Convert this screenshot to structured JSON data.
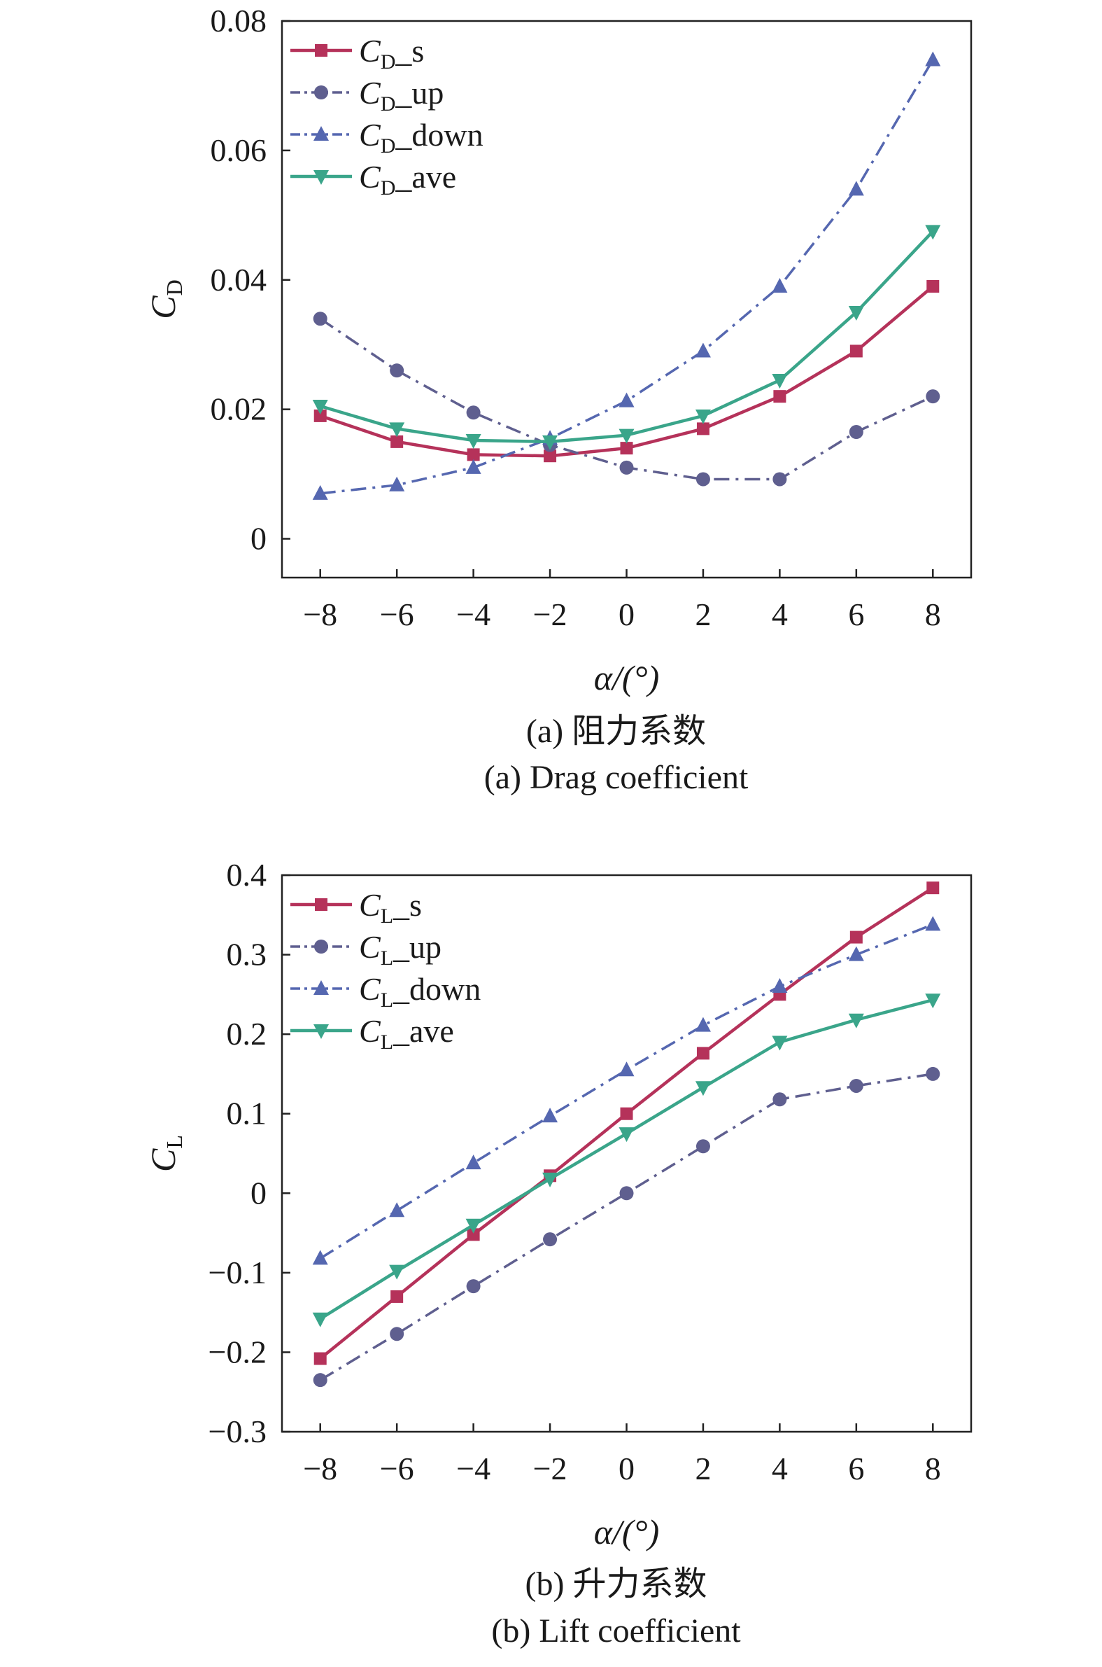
{
  "chart_data": [
    {
      "type": "line",
      "x": [
        -8,
        -6,
        -4,
        -2,
        0,
        2,
        4,
        6,
        8
      ],
      "xlim": [
        -9,
        9
      ],
      "ylim": [
        -0.006,
        0.08
      ],
      "xticks": [
        -8,
        -6,
        -4,
        -2,
        0,
        2,
        4,
        6,
        8
      ],
      "xtick_labels": [
        "−8",
        "−6",
        "−4",
        "−2",
        "0",
        "2",
        "4",
        "6",
        "8"
      ],
      "yticks": [
        0,
        0.02,
        0.04,
        0.06,
        0.08
      ],
      "ytick_labels": [
        "0",
        "0.02",
        "0.04",
        "0.06",
        "0.08"
      ],
      "xlabel": "α/(°)",
      "ylabel": {
        "main": "C",
        "sub": "D"
      },
      "caption_cn": "(a) 阻力系数",
      "caption_en": "(a) Drag coefficient",
      "grid": false,
      "legend_position": "top-left",
      "series": [
        {
          "label_main": "C",
          "label_sub": "D",
          "label_suffix": "_s",
          "color": "#b5325a",
          "dash": "solid",
          "marker": "square",
          "values": [
            0.019,
            0.015,
            0.013,
            0.0128,
            0.014,
            0.017,
            0.022,
            0.029,
            0.039
          ]
        },
        {
          "label_main": "C",
          "label_sub": "D",
          "label_suffix": "_up",
          "color": "#5f5f8f",
          "dash": "dashdot",
          "marker": "circle",
          "values": [
            0.034,
            0.026,
            0.0195,
            0.0145,
            0.011,
            0.0092,
            0.0092,
            0.0165,
            0.022
          ]
        },
        {
          "label_main": "C",
          "label_sub": "D",
          "label_suffix": "_down",
          "color": "#5567b0",
          "dash": "dashdot",
          "marker": "triangle-up",
          "values": [
            0.007,
            0.0083,
            0.011,
            0.0155,
            0.0213,
            0.029,
            0.039,
            0.054,
            0.074
          ]
        },
        {
          "label_main": "C",
          "label_sub": "D",
          "label_suffix": "_ave",
          "color": "#3aa58a",
          "dash": "solid",
          "marker": "triangle-down",
          "values": [
            0.0205,
            0.017,
            0.0152,
            0.015,
            0.016,
            0.019,
            0.0245,
            0.035,
            0.0475
          ]
        }
      ]
    },
    {
      "type": "line",
      "x": [
        -8,
        -6,
        -4,
        -2,
        0,
        2,
        4,
        6,
        8
      ],
      "xlim": [
        -9,
        9
      ],
      "ylim": [
        -0.3,
        0.4
      ],
      "xticks": [
        -8,
        -6,
        -4,
        -2,
        0,
        2,
        4,
        6,
        8
      ],
      "xtick_labels": [
        "−8",
        "−6",
        "−4",
        "−2",
        "0",
        "2",
        "4",
        "6",
        "8"
      ],
      "yticks": [
        -0.3,
        -0.2,
        -0.1,
        0,
        0.1,
        0.2,
        0.3,
        0.4
      ],
      "ytick_labels": [
        "−0.3",
        "−0.2",
        "−0.1",
        "0",
        "0.1",
        "0.2",
        "0.3",
        "0.4"
      ],
      "xlabel": "α/(°)",
      "ylabel": {
        "main": "C",
        "sub": "L"
      },
      "caption_cn": "(b) 升力系数",
      "caption_en": "(b) Lift coefficient",
      "grid": false,
      "legend_position": "top-left",
      "series": [
        {
          "label_main": "C",
          "label_sub": "L",
          "label_suffix": "_s",
          "color": "#b5325a",
          "dash": "solid",
          "marker": "square",
          "values": [
            -0.208,
            -0.13,
            -0.052,
            0.022,
            0.1,
            0.176,
            0.25,
            0.322,
            0.384
          ]
        },
        {
          "label_main": "C",
          "label_sub": "L",
          "label_suffix": "_up",
          "color": "#5f5f8f",
          "dash": "dashdot",
          "marker": "circle",
          "values": [
            -0.235,
            -0.177,
            -0.117,
            -0.058,
            0.0,
            0.059,
            0.118,
            0.135,
            0.15
          ]
        },
        {
          "label_main": "C",
          "label_sub": "L",
          "label_suffix": "_down",
          "color": "#5567b0",
          "dash": "dashdot",
          "marker": "triangle-up",
          "values": [
            -0.082,
            -0.022,
            0.038,
            0.097,
            0.155,
            0.211,
            0.26,
            0.3,
            0.338
          ]
        },
        {
          "label_main": "C",
          "label_sub": "L",
          "label_suffix": "_ave",
          "color": "#3aa58a",
          "dash": "solid",
          "marker": "triangle-down",
          "values": [
            -0.158,
            -0.098,
            -0.04,
            0.018,
            0.075,
            0.133,
            0.19,
            0.218,
            0.243
          ]
        }
      ]
    }
  ]
}
